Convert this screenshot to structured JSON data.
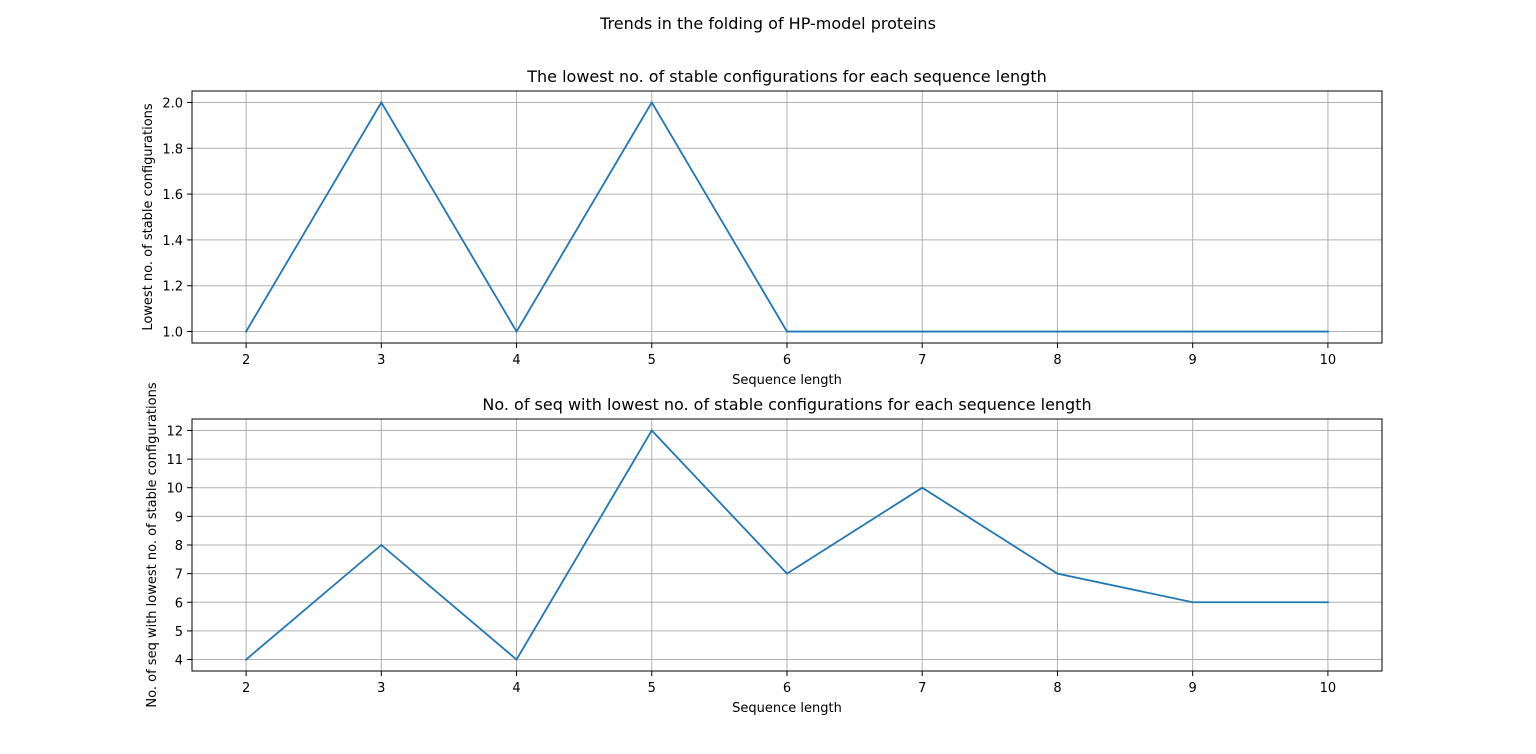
{
  "figure": {
    "suptitle": "Trends in the folding of HP-model proteins"
  },
  "colors": {
    "line": "#1f77b4",
    "grid": "#b0b0b0",
    "axes": "#000000",
    "background": "#ffffff"
  },
  "chart_data": [
    {
      "type": "line",
      "title": "The lowest no. of stable configurations for each sequence length",
      "xlabel": "Sequence length",
      "ylabel": "Lowest no. of stable configurations",
      "grid": true,
      "xlim": [
        1.6,
        10.4
      ],
      "ylim": [
        0.95,
        2.05
      ],
      "x": [
        2,
        3,
        4,
        5,
        6,
        7,
        8,
        9,
        10
      ],
      "xticks": [
        "2",
        "3",
        "4",
        "5",
        "6",
        "7",
        "8",
        "9",
        "10"
      ],
      "yticks": [
        "1.0",
        "1.2",
        "1.4",
        "1.6",
        "1.8",
        "2.0"
      ],
      "series": [
        {
          "values": [
            1,
            2,
            1,
            2,
            1,
            1,
            1,
            1,
            1
          ]
        }
      ]
    },
    {
      "type": "line",
      "title": "No. of seq with lowest no. of stable configurations for each sequence length",
      "xlabel": "Sequence length",
      "ylabel": "No. of seq with lowest no. of stable configurations",
      "grid": true,
      "xlim": [
        1.6,
        10.4
      ],
      "ylim": [
        3.6,
        12.4
      ],
      "x": [
        2,
        3,
        4,
        5,
        6,
        7,
        8,
        9,
        10
      ],
      "xticks": [
        "2",
        "3",
        "4",
        "5",
        "6",
        "7",
        "8",
        "9",
        "10"
      ],
      "yticks": [
        "4",
        "5",
        "6",
        "7",
        "8",
        "9",
        "10",
        "11",
        "12"
      ],
      "series": [
        {
          "values": [
            4,
            8,
            4,
            12,
            7,
            10,
            7,
            6,
            6
          ]
        }
      ]
    }
  ]
}
